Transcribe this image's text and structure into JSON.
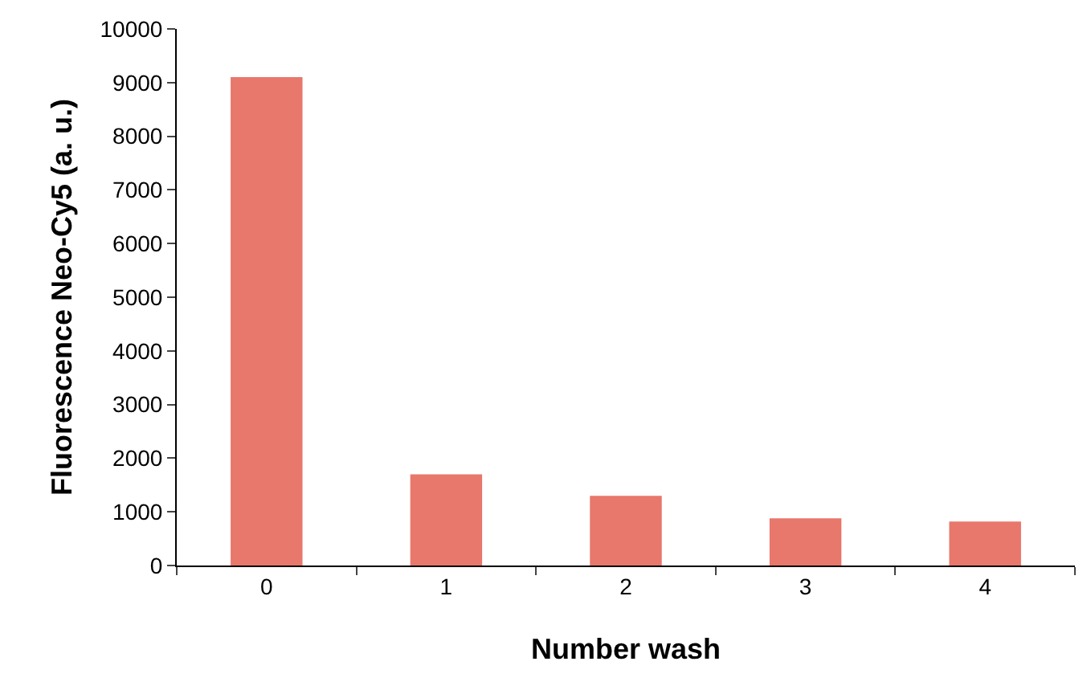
{
  "chart_data": {
    "type": "bar",
    "xlabel": "Number wash",
    "ylabel": "Fluorescence Neo-Cy5 (a. u.)",
    "categories": [
      "0",
      "1",
      "2",
      "3",
      "4"
    ],
    "values": [
      9100,
      1700,
      1300,
      880,
      820
    ],
    "color": "#e8776c",
    "ylim": [
      0,
      10000
    ],
    "yticks": [
      0,
      1000,
      2000,
      3000,
      4000,
      5000,
      6000,
      7000,
      8000,
      9000,
      10000
    ]
  }
}
